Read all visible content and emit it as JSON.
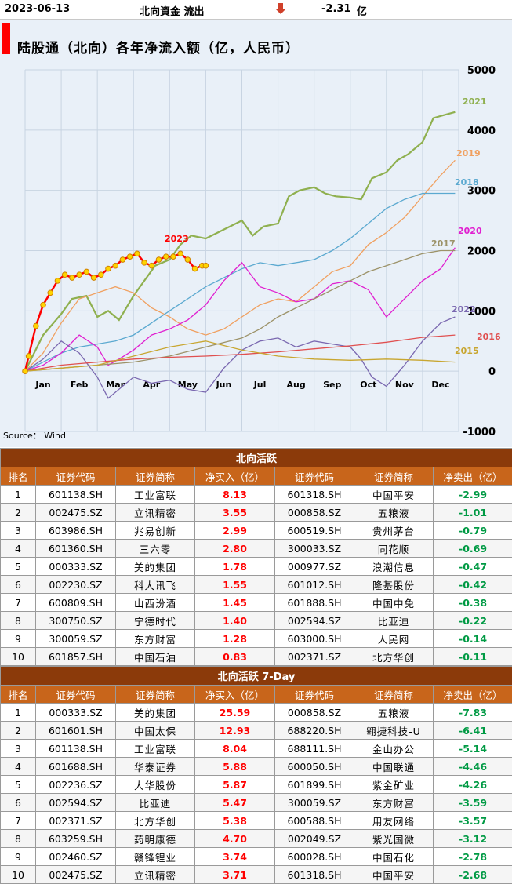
{
  "header": {
    "date": "2023-06-13",
    "label": "北向資金 流出",
    "arrow": "down-arrow",
    "value": "-2.31",
    "unit": "亿"
  },
  "chart_title": "陆股通（北向）各年净流入额（亿，人民币）",
  "source_note": "Source： Wind",
  "chart_data": {
    "type": "line",
    "title": "陆股通（北向）各年净流入额（亿，人民币）",
    "ylim": [
      -1000,
      5000
    ],
    "yticks": [
      5000,
      4000,
      3000,
      2000,
      1000,
      0,
      -1000
    ],
    "xlabels": [
      "Jan",
      "Feb",
      "Mar",
      "Apr",
      "May",
      "Jun",
      "Jul",
      "Aug",
      "Sep",
      "Oct",
      "Nov",
      "Dec"
    ],
    "x_unit": "month",
    "grid": true,
    "series": [
      {
        "name": "2021",
        "color": "#8fb04f",
        "x": [
          0,
          0.5,
          1.0,
          1.3,
          1.7,
          2.0,
          2.3,
          2.6,
          3.0,
          3.3,
          3.6,
          4.0,
          4.3,
          4.6,
          5.0,
          5.5,
          6.0,
          6.3,
          6.6,
          7.0,
          7.3,
          7.6,
          8.0,
          8.3,
          8.6,
          9.0,
          9.3,
          9.6,
          10.0,
          10.3,
          10.6,
          11.0,
          11.3,
          11.6,
          11.9
        ],
        "values": [
          0,
          600,
          950,
          1200,
          1250,
          900,
          1000,
          850,
          1250,
          1500,
          1750,
          1850,
          2100,
          2250,
          2200,
          2350,
          2500,
          2250,
          2400,
          2450,
          2900,
          3000,
          3050,
          2950,
          2900,
          2880,
          2850,
          3200,
          3300,
          3500,
          3600,
          3800,
          4200,
          4250,
          4300
        ]
      },
      {
        "name": "2019",
        "color": "#f0a060",
        "x": [
          0,
          0.5,
          1.0,
          1.5,
          2.0,
          2.5,
          3.0,
          3.5,
          4.0,
          4.5,
          5.0,
          5.5,
          6.0,
          6.5,
          7.0,
          7.5,
          8.0,
          8.5,
          9.0,
          9.5,
          10.0,
          10.5,
          11.0,
          11.5,
          11.9
        ],
        "values": [
          0,
          300,
          800,
          1200,
          1300,
          1400,
          1300,
          1050,
          900,
          700,
          600,
          700,
          900,
          1100,
          1200,
          1150,
          1400,
          1650,
          1750,
          2100,
          2300,
          2550,
          2900,
          3250,
          3500
        ]
      },
      {
        "name": "2018",
        "color": "#5ba9d0",
        "x": [
          0,
          0.5,
          1.0,
          1.5,
          2.0,
          2.5,
          3.0,
          3.5,
          4.0,
          4.5,
          5.0,
          5.5,
          6.0,
          6.5,
          7.0,
          7.5,
          8.0,
          8.5,
          9.0,
          9.5,
          10.0,
          10.5,
          11.0,
          11.5,
          11.9
        ],
        "values": [
          0,
          150,
          300,
          400,
          450,
          500,
          600,
          800,
          1000,
          1200,
          1400,
          1550,
          1700,
          1800,
          1750,
          1800,
          1850,
          2000,
          2200,
          2450,
          2700,
          2850,
          2950,
          2950,
          2950
        ]
      },
      {
        "name": "2020",
        "color": "#e020d0",
        "x": [
          0,
          0.5,
          1.0,
          1.5,
          2.0,
          2.3,
          2.6,
          3.0,
          3.5,
          4.0,
          4.5,
          5.0,
          5.5,
          6.0,
          6.5,
          7.0,
          7.5,
          8.0,
          8.5,
          9.0,
          9.5,
          10.0,
          10.5,
          11.0,
          11.5,
          11.9
        ],
        "values": [
          0,
          100,
          300,
          600,
          400,
          100,
          200,
          350,
          600,
          700,
          850,
          1100,
          1500,
          1800,
          1400,
          1300,
          1150,
          1200,
          1450,
          1500,
          1350,
          900,
          1200,
          1500,
          1700,
          2050
        ]
      },
      {
        "name": "2017",
        "color": "#9c9268",
        "x": [
          0,
          1.0,
          2.0,
          3.0,
          4.0,
          5.0,
          6.0,
          6.5,
          7.0,
          7.5,
          8.0,
          8.5,
          9.0,
          9.5,
          10.0,
          10.5,
          11.0,
          11.5,
          11.9
        ],
        "values": [
          0,
          50,
          100,
          150,
          250,
          400,
          550,
          700,
          900,
          1050,
          1200,
          1350,
          1500,
          1650,
          1750,
          1850,
          1950,
          2000,
          2000
        ]
      },
      {
        "name": "2022",
        "color": "#7a68b0",
        "x": [
          0,
          0.5,
          1.0,
          1.5,
          2.0,
          2.3,
          2.6,
          3.0,
          3.5,
          4.0,
          4.5,
          5.0,
          5.5,
          6.0,
          6.5,
          7.0,
          7.5,
          8.0,
          8.5,
          9.0,
          9.3,
          9.6,
          10.0,
          10.5,
          11.0,
          11.5,
          11.9
        ],
        "values": [
          0,
          200,
          500,
          300,
          -100,
          -450,
          -300,
          -100,
          -200,
          -150,
          -300,
          -350,
          50,
          350,
          500,
          550,
          400,
          500,
          450,
          400,
          200,
          -100,
          -250,
          100,
          500,
          800,
          900
        ]
      },
      {
        "name": "2016",
        "color": "#e05050",
        "x": [
          0,
          1.0,
          2.0,
          3.0,
          4.0,
          5.0,
          6.0,
          7.0,
          8.0,
          9.0,
          10.0,
          11.0,
          11.9
        ],
        "values": [
          0,
          100,
          150,
          200,
          230,
          250,
          280,
          320,
          370,
          420,
          480,
          560,
          600
        ]
      },
      {
        "name": "2015",
        "color": "#c8a630",
        "x": [
          0,
          1.0,
          2.0,
          3.0,
          4.0,
          5.0,
          6.0,
          7.0,
          8.0,
          9.0,
          10.0,
          11.0,
          11.9
        ],
        "values": [
          0,
          50,
          100,
          250,
          400,
          500,
          350,
          250,
          200,
          180,
          200,
          180,
          150
        ]
      },
      {
        "name": "2023",
        "color": "#ff0000",
        "marker": "circle",
        "x": [
          0,
          0.1,
          0.3,
          0.5,
          0.7,
          0.9,
          1.1,
          1.3,
          1.5,
          1.7,
          1.9,
          2.1,
          2.3,
          2.5,
          2.7,
          2.9,
          3.1,
          3.3,
          3.5,
          3.7,
          3.9,
          4.1,
          4.3,
          4.5,
          4.7,
          4.9,
          5.0
        ],
        "values": [
          0,
          250,
          750,
          1100,
          1300,
          1500,
          1600,
          1550,
          1600,
          1650,
          1550,
          1600,
          1700,
          1750,
          1850,
          1900,
          1950,
          1800,
          1750,
          1850,
          1900,
          1900,
          1950,
          1850,
          1700,
          1750,
          1750
        ]
      }
    ]
  },
  "table1": {
    "title": "北向活跃",
    "headers": [
      "排名",
      "证券代码",
      "证券简称",
      "净买入（亿）",
      "证券代码",
      "证券简称",
      "净卖出（亿）"
    ],
    "rows": [
      [
        "1",
        "601138.SH",
        "工业富联",
        "8.13",
        "601318.SH",
        "中国平安",
        "-2.99"
      ],
      [
        "2",
        "002475.SZ",
        "立讯精密",
        "3.55",
        "000858.SZ",
        "五粮液",
        "-1.01"
      ],
      [
        "3",
        "603986.SH",
        "兆易创新",
        "2.99",
        "600519.SH",
        "贵州茅台",
        "-0.79"
      ],
      [
        "4",
        "601360.SH",
        "三六零",
        "2.80",
        "300033.SZ",
        "同花顺",
        "-0.69"
      ],
      [
        "5",
        "000333.SZ",
        "美的集团",
        "1.78",
        "000977.SZ",
        "浪潮信息",
        "-0.47"
      ],
      [
        "6",
        "002230.SZ",
        "科大讯飞",
        "1.55",
        "601012.SH",
        "隆基股份",
        "-0.42"
      ],
      [
        "7",
        "600809.SH",
        "山西汾酒",
        "1.45",
        "601888.SH",
        "中国中免",
        "-0.38"
      ],
      [
        "8",
        "300750.SZ",
        "宁德时代",
        "1.40",
        "002594.SZ",
        "比亚迪",
        "-0.22"
      ],
      [
        "9",
        "300059.SZ",
        "东方财富",
        "1.28",
        "603000.SH",
        "人民网",
        "-0.14"
      ],
      [
        "10",
        "601857.SH",
        "中国石油",
        "0.83",
        "002371.SZ",
        "北方华创",
        "-0.11"
      ]
    ]
  },
  "table2": {
    "title": "北向活跃 7-Day",
    "headers": [
      "排名",
      "证券代码",
      "证券简称",
      "净买入（亿）",
      "证券代码",
      "证券简称",
      "净卖出（亿）"
    ],
    "rows": [
      [
        "1",
        "000333.SZ",
        "美的集团",
        "25.59",
        "000858.SZ",
        "五粮液",
        "-7.83"
      ],
      [
        "2",
        "601601.SH",
        "中国太保",
        "12.93",
        "688220.SH",
        "翱捷科技-U",
        "-6.41"
      ],
      [
        "3",
        "601138.SH",
        "工业富联",
        "8.04",
        "688111.SH",
        "金山办公",
        "-5.14"
      ],
      [
        "4",
        "601688.SH",
        "华泰证券",
        "5.88",
        "600050.SH",
        "中国联通",
        "-4.46"
      ],
      [
        "5",
        "002236.SZ",
        "大华股份",
        "5.87",
        "601899.SH",
        "紫金矿业",
        "-4.26"
      ],
      [
        "6",
        "002594.SZ",
        "比亚迪",
        "5.47",
        "300059.SZ",
        "东方财富",
        "-3.59"
      ],
      [
        "7",
        "002371.SZ",
        "北方华创",
        "5.38",
        "600588.SH",
        "用友网络",
        "-3.57"
      ],
      [
        "8",
        "603259.SH",
        "药明康德",
        "4.70",
        "002049.SZ",
        "紫光国微",
        "-3.12"
      ],
      [
        "9",
        "002460.SZ",
        "赣锋锂业",
        "3.74",
        "600028.SH",
        "中国石化",
        "-2.78"
      ],
      [
        "10",
        "002475.SZ",
        "立讯精密",
        "3.71",
        "601318.SH",
        "中国平安",
        "-2.68"
      ]
    ]
  }
}
